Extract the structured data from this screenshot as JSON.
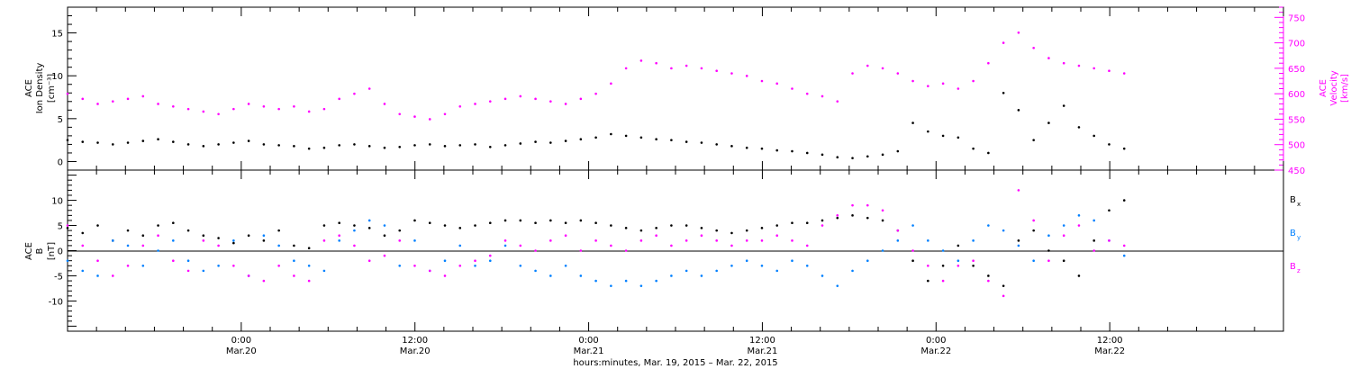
{
  "chart_data": [
    {
      "type": "scatter",
      "panel": "top",
      "ylabel_left": [
        "ACE",
        "Ion Density",
        "[cm⁻³]"
      ],
      "ylabel_right": [
        "ACE",
        "Velocity",
        "[km/s]"
      ],
      "ylim_left": [
        -1,
        18
      ],
      "ylim_right": [
        450,
        770
      ],
      "yticks_left": [
        "0",
        "5",
        "10",
        "15"
      ],
      "yticks_right": [
        "450",
        "500",
        "550",
        "600",
        "650",
        "700",
        "750"
      ],
      "series": [
        {
          "name": "Density",
          "axis": "left",
          "color": "#000000",
          "x": [
            0,
            3,
            6,
            9,
            12,
            15,
            18,
            21,
            24,
            27,
            30,
            33,
            36,
            39,
            42,
            45,
            48,
            51,
            54,
            57,
            60,
            63,
            66,
            69,
            72,
            75,
            78,
            81,
            84,
            87,
            90,
            93,
            96,
            99,
            102,
            105,
            108,
            111,
            114,
            117,
            120,
            123,
            126,
            129,
            132,
            135,
            138,
            141,
            144,
            147,
            150,
            153,
            156,
            159,
            162,
            165,
            168,
            171,
            174,
            177,
            180,
            183,
            186,
            189,
            192,
            195,
            198,
            201,
            204,
            207,
            210
          ],
          "y": [
            2.5,
            2.3,
            2.2,
            2.0,
            2.2,
            2.4,
            2.6,
            2.3,
            2.0,
            1.8,
            2.0,
            2.2,
            2.4,
            2.0,
            1.9,
            1.8,
            1.5,
            1.6,
            1.9,
            2.0,
            1.8,
            1.6,
            1.7,
            1.9,
            2.0,
            1.8,
            1.9,
            2.0,
            1.7,
            1.9,
            2.1,
            2.3,
            2.2,
            2.4,
            2.6,
            2.8,
            3.2,
            3.0,
            2.8,
            2.6,
            2.5,
            2.3,
            2.2,
            2.0,
            1.8,
            1.6,
            1.5,
            1.3,
            1.2,
            1.0,
            0.8,
            0.5,
            0.4,
            0.6,
            0.8,
            1.2,
            4.5,
            3.5,
            3.0,
            2.8,
            1.5,
            1.0,
            8.0,
            6.0,
            2.5,
            4.5,
            6.5,
            4.0,
            3.0,
            2.0,
            1.5
          ]
        },
        {
          "name": "Velocity",
          "axis": "right",
          "color": "#ff00ff",
          "x": [
            0,
            3,
            6,
            9,
            12,
            15,
            18,
            21,
            24,
            27,
            30,
            33,
            36,
            39,
            42,
            45,
            48,
            51,
            54,
            57,
            60,
            63,
            66,
            69,
            72,
            75,
            78,
            81,
            84,
            87,
            90,
            93,
            96,
            99,
            102,
            105,
            108,
            111,
            114,
            117,
            120,
            123,
            126,
            129,
            132,
            135,
            138,
            141,
            144,
            147,
            150,
            153,
            156,
            159,
            162,
            165,
            168,
            171,
            174,
            177,
            180,
            183,
            186,
            189,
            192,
            195,
            198,
            201,
            204,
            207,
            210
          ],
          "y": [
            600,
            590,
            580,
            585,
            590,
            595,
            580,
            575,
            570,
            565,
            560,
            570,
            580,
            575,
            570,
            575,
            565,
            570,
            590,
            600,
            610,
            580,
            560,
            555,
            550,
            560,
            575,
            580,
            585,
            590,
            595,
            590,
            585,
            580,
            590,
            600,
            620,
            650,
            665,
            660,
            650,
            655,
            650,
            645,
            640,
            635,
            625,
            620,
            610,
            600,
            595,
            585,
            640,
            655,
            650,
            640,
            625,
            615,
            620,
            610,
            625,
            660,
            700,
            720,
            690,
            670,
            660,
            655,
            650,
            645,
            640
          ]
        }
      ]
    },
    {
      "type": "scatter",
      "panel": "bottom",
      "ylabel_left": [
        "ACE",
        "B",
        "[nT]"
      ],
      "ylim": [
        -16,
        16
      ],
      "yticks": [
        "-10",
        "-5",
        "0",
        "5",
        "10"
      ],
      "series": [
        {
          "name": "Bx",
          "label": "B",
          "sub": "x",
          "color": "#000000",
          "x": [
            0,
            3,
            6,
            9,
            12,
            15,
            18,
            21,
            24,
            27,
            30,
            33,
            36,
            39,
            42,
            45,
            48,
            51,
            54,
            57,
            60,
            63,
            66,
            69,
            72,
            75,
            78,
            81,
            84,
            87,
            90,
            93,
            96,
            99,
            102,
            105,
            108,
            111,
            114,
            117,
            120,
            123,
            126,
            129,
            132,
            135,
            138,
            141,
            144,
            147,
            150,
            153,
            156,
            159,
            162,
            165,
            168,
            171,
            174,
            177,
            180,
            183,
            186,
            189,
            192,
            195,
            198,
            201,
            204,
            207,
            210
          ],
          "y": [
            4.5,
            3.5,
            5.0,
            2.0,
            4.0,
            3.0,
            5.0,
            5.5,
            4.0,
            3.0,
            2.5,
            1.5,
            3.0,
            2.0,
            4.0,
            1.0,
            0.5,
            5.0,
            5.5,
            5.0,
            4.5,
            3.0,
            4.0,
            6.0,
            5.5,
            5.0,
            4.5,
            5.0,
            5.5,
            6.0,
            6.0,
            5.5,
            6.0,
            5.5,
            6.0,
            5.5,
            5.0,
            4.5,
            4.0,
            4.5,
            5.0,
            5.0,
            4.5,
            4.0,
            3.5,
            4.0,
            4.5,
            5.0,
            5.5,
            5.5,
            6.0,
            6.5,
            7.0,
            6.5,
            6.0,
            4.0,
            -2.0,
            -6.0,
            -3.0,
            1.0,
            -3.0,
            -5.0,
            -7.0,
            2.0,
            4.0,
            0.0,
            -2.0,
            -5.0,
            2.0,
            8.0,
            10.0
          ]
        },
        {
          "name": "By",
          "label": "B",
          "sub": "y",
          "color": "#0080ff",
          "x": [
            0,
            3,
            6,
            9,
            12,
            15,
            18,
            21,
            24,
            27,
            30,
            33,
            36,
            39,
            42,
            45,
            48,
            51,
            54,
            57,
            60,
            63,
            66,
            69,
            72,
            75,
            78,
            81,
            84,
            87,
            90,
            93,
            96,
            99,
            102,
            105,
            108,
            111,
            114,
            117,
            120,
            123,
            126,
            129,
            132,
            135,
            138,
            141,
            144,
            147,
            150,
            153,
            156,
            159,
            162,
            165,
            168,
            171,
            174,
            177,
            180,
            183,
            186,
            189,
            192,
            195,
            198,
            201,
            204,
            207,
            210
          ],
          "y": [
            -2.0,
            -4.0,
            -5.0,
            2.0,
            1.0,
            -3.0,
            0.0,
            2.0,
            -2.0,
            -4.0,
            -3.0,
            2.0,
            -5.0,
            3.0,
            1.0,
            -2.0,
            -3.0,
            -4.0,
            2.0,
            4.0,
            6.0,
            5.0,
            -3.0,
            2.0,
            -4.0,
            -2.0,
            1.0,
            -3.0,
            -2.0,
            1.0,
            -3.0,
            -4.0,
            -5.0,
            -3.0,
            -5.0,
            -6.0,
            -7.0,
            -6.0,
            -7.0,
            -6.0,
            -5.0,
            -4.0,
            -5.0,
            -4.0,
            -3.0,
            -2.0,
            -3.0,
            -4.0,
            -2.0,
            -3.0,
            -5.0,
            -7.0,
            -4.0,
            -2.0,
            0.0,
            2.0,
            5.0,
            2.0,
            0.0,
            -2.0,
            2.0,
            5.0,
            4.0,
            1.0,
            -2.0,
            3.0,
            5.0,
            7.0,
            6.0,
            2.0,
            -1.0
          ]
        },
        {
          "name": "Bz",
          "label": "B",
          "sub": "z",
          "color": "#ff00ff",
          "x": [
            0,
            3,
            6,
            9,
            12,
            15,
            18,
            21,
            24,
            27,
            30,
            33,
            36,
            39,
            42,
            45,
            48,
            51,
            54,
            57,
            60,
            63,
            66,
            69,
            72,
            75,
            78,
            81,
            84,
            87,
            90,
            93,
            96,
            99,
            102,
            105,
            108,
            111,
            114,
            117,
            120,
            123,
            126,
            129,
            132,
            135,
            138,
            141,
            144,
            147,
            150,
            153,
            156,
            159,
            162,
            165,
            168,
            171,
            174,
            177,
            180,
            183,
            186,
            189,
            192,
            195,
            198,
            201,
            204,
            207,
            210
          ],
          "y": [
            5.0,
            1.0,
            -2.0,
            -5.0,
            -3.0,
            1.0,
            3.0,
            -2.0,
            -4.0,
            2.0,
            1.0,
            -3.0,
            -5.0,
            -6.0,
            -3.0,
            -5.0,
            -6.0,
            2.0,
            3.0,
            1.0,
            -2.0,
            -1.0,
            2.0,
            -3.0,
            -4.0,
            -5.0,
            -3.0,
            -2.0,
            -1.0,
            2.0,
            1.0,
            0.0,
            2.0,
            3.0,
            0.0,
            2.0,
            1.0,
            0.0,
            2.0,
            3.0,
            1.0,
            2.0,
            3.0,
            2.0,
            1.0,
            2.0,
            2.0,
            3.0,
            2.0,
            1.0,
            5.0,
            7.0,
            9.0,
            9.0,
            8.0,
            4.0,
            0.0,
            -3.0,
            -6.0,
            -3.0,
            -2.0,
            -6.0,
            -9.0,
            12.0,
            6.0,
            -2.0,
            3.0,
            5.0,
            0.0,
            2.0,
            1.0
          ]
        }
      ]
    }
  ],
  "x_axis": {
    "range_hours": [
      -12,
      72
    ],
    "ticks": [
      {
        "top": "0:00",
        "bottom": "Mar.20"
      },
      {
        "top": "12:00",
        "bottom": "Mar.20"
      },
      {
        "top": "0:00",
        "bottom": "Mar.21"
      },
      {
        "top": "12:00",
        "bottom": "Mar.21"
      },
      {
        "top": "0:00",
        "bottom": "Mar.22"
      },
      {
        "top": "12:00",
        "bottom": "Mar.22"
      }
    ],
    "tick_hours": [
      0,
      12,
      24,
      36,
      48,
      60
    ],
    "title": "hours:minutes, Mar. 19, 2015 – Mar. 22, 2015"
  }
}
